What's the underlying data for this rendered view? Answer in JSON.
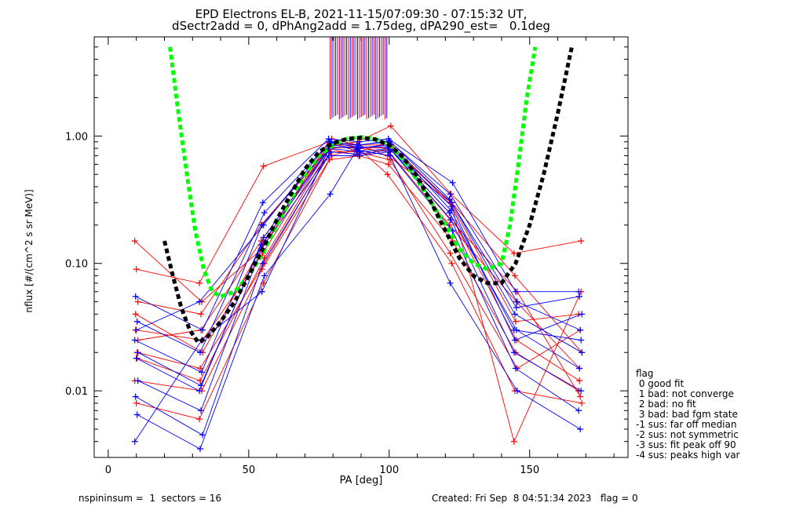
{
  "chart_data": {
    "type": "line",
    "title": "EPD Electrons EL-B, 2021-11-15/07:09:30 - 07:15:32 UT,",
    "subtitle": "dSectr2add = 0, dPhAng2add = 1.75deg, dPA290_est=   0.1deg",
    "xlabel": "PA [deg]",
    "ylabel": "nflux [#/(cm^2 s sr MeV)]",
    "xlim": [
      -5,
      185
    ],
    "ylim": [
      0.003,
      6.0
    ],
    "yscale": "log",
    "xticks": [
      "0",
      "50",
      "100",
      "150"
    ],
    "yticks": [
      "0.01",
      "0.10",
      "1.00"
    ],
    "grid": false,
    "colors": {
      "red": "#ff0000",
      "blue": "#0000ff",
      "green": "#00ff00",
      "black": "#000000"
    },
    "series": [
      {
        "color": "green",
        "style": "dashed-thick",
        "x": [
          22,
          25,
          28,
          31,
          34,
          37,
          40,
          45,
          50,
          55,
          60,
          65,
          70,
          75,
          80,
          85,
          90,
          95,
          100,
          105,
          110,
          115,
          120,
          125,
          130,
          135,
          140,
          143,
          146,
          149,
          152
        ],
        "y": [
          5.0,
          1.5,
          0.5,
          0.18,
          0.09,
          0.06,
          0.055,
          0.06,
          0.08,
          0.12,
          0.2,
          0.32,
          0.5,
          0.7,
          0.85,
          0.95,
          0.98,
          0.95,
          0.85,
          0.65,
          0.45,
          0.3,
          0.2,
          0.13,
          0.1,
          0.09,
          0.1,
          0.2,
          0.6,
          2.0,
          5.0
        ]
      },
      {
        "color": "black",
        "style": "dashed-thick",
        "x": [
          20,
          23,
          26,
          29,
          32,
          35,
          40,
          45,
          50,
          55,
          60,
          65,
          70,
          75,
          80,
          85,
          90,
          95,
          100,
          105,
          110,
          115,
          120,
          125,
          130,
          135,
          140,
          145,
          150,
          155,
          160,
          165
        ],
        "y": [
          0.15,
          0.08,
          0.045,
          0.03,
          0.024,
          0.026,
          0.035,
          0.05,
          0.08,
          0.13,
          0.22,
          0.35,
          0.55,
          0.75,
          0.88,
          0.95,
          0.97,
          0.94,
          0.85,
          0.68,
          0.48,
          0.3,
          0.18,
          0.11,
          0.08,
          0.07,
          0.07,
          0.1,
          0.2,
          0.5,
          1.5,
          5.0
        ]
      }
    ],
    "flux_bundle": {
      "pa_columns": [
        10,
        33,
        55,
        79,
        89,
        100,
        122,
        145,
        168
      ],
      "profiles_red": [
        [
          0.15,
          0.05,
          0.13,
          0.95,
          0.85,
          0.7,
          0.3,
          0.08,
          0.02
        ],
        [
          0.09,
          0.07,
          0.58,
          0.9,
          0.8,
          0.75,
          0.2,
          0.05,
          0.015
        ],
        [
          0.05,
          0.04,
          0.2,
          0.85,
          0.9,
          1.2,
          0.35,
          0.12,
          0.15
        ],
        [
          0.03,
          0.025,
          0.12,
          0.8,
          0.7,
          0.6,
          0.15,
          0.02,
          0.01
        ],
        [
          0.02,
          0.015,
          0.1,
          0.75,
          0.75,
          0.65,
          0.12,
          0.015,
          0.03
        ],
        [
          0.012,
          0.01,
          0.09,
          0.7,
          0.8,
          0.5,
          0.1,
          0.01,
          0.008
        ],
        [
          0.008,
          0.006,
          0.07,
          0.65,
          0.7,
          0.8,
          0.25,
          0.025,
          0.012
        ],
        [
          0.025,
          0.03,
          0.15,
          0.85,
          0.85,
          0.85,
          0.3,
          0.004,
          0.06
        ],
        [
          0.04,
          0.02,
          0.14,
          0.9,
          0.75,
          0.9,
          0.28,
          0.035,
          0.04
        ],
        [
          0.018,
          0.012,
          0.11,
          0.8,
          0.82,
          0.8,
          0.22,
          0.06,
          0.009
        ]
      ],
      "profiles_blue": [
        [
          0.055,
          0.03,
          0.3,
          0.95,
          0.9,
          0.95,
          0.43,
          0.06,
          0.06
        ],
        [
          0.035,
          0.02,
          0.25,
          0.9,
          0.85,
          0.9,
          0.35,
          0.05,
          0.03
        ],
        [
          0.025,
          0.014,
          0.2,
          0.85,
          0.8,
          0.85,
          0.3,
          0.04,
          0.02
        ],
        [
          0.018,
          0.01,
          0.16,
          0.8,
          0.75,
          0.8,
          0.25,
          0.03,
          0.015
        ],
        [
          0.012,
          0.007,
          0.13,
          0.75,
          0.72,
          0.78,
          0.22,
          0.02,
          0.01
        ],
        [
          0.009,
          0.0045,
          0.1,
          0.7,
          0.7,
          0.75,
          0.18,
          0.015,
          0.007
        ],
        [
          0.0065,
          0.0035,
          0.08,
          0.35,
          0.78,
          0.7,
          0.07,
          0.01,
          0.005
        ],
        [
          0.004,
          0.025,
          0.06,
          0.88,
          0.82,
          0.82,
          0.28,
          0.025,
          0.04
        ],
        [
          0.03,
          0.05,
          0.2,
          0.9,
          0.85,
          0.92,
          0.32,
          0.045,
          0.055
        ],
        [
          0.02,
          0.011,
          0.14,
          0.82,
          0.8,
          0.86,
          0.26,
          0.03,
          0.025
        ]
      ]
    }
  },
  "legend": {
    "title": "flag",
    "items": [
      " 0 good fit",
      " 1 bad: not converge",
      " 2 bad: no fit",
      " 3 bad: bad fgm state",
      "-1 sus: far off median",
      "-2 sus: not symmetric",
      "-3 sus: fit peak off 90",
      "-4 sus: peaks high var"
    ]
  },
  "footer": {
    "left": "nspininsum =  1  sectors = 16",
    "right": "Created: Fri Sep  8 04:51:34 2023   flag = 0"
  }
}
